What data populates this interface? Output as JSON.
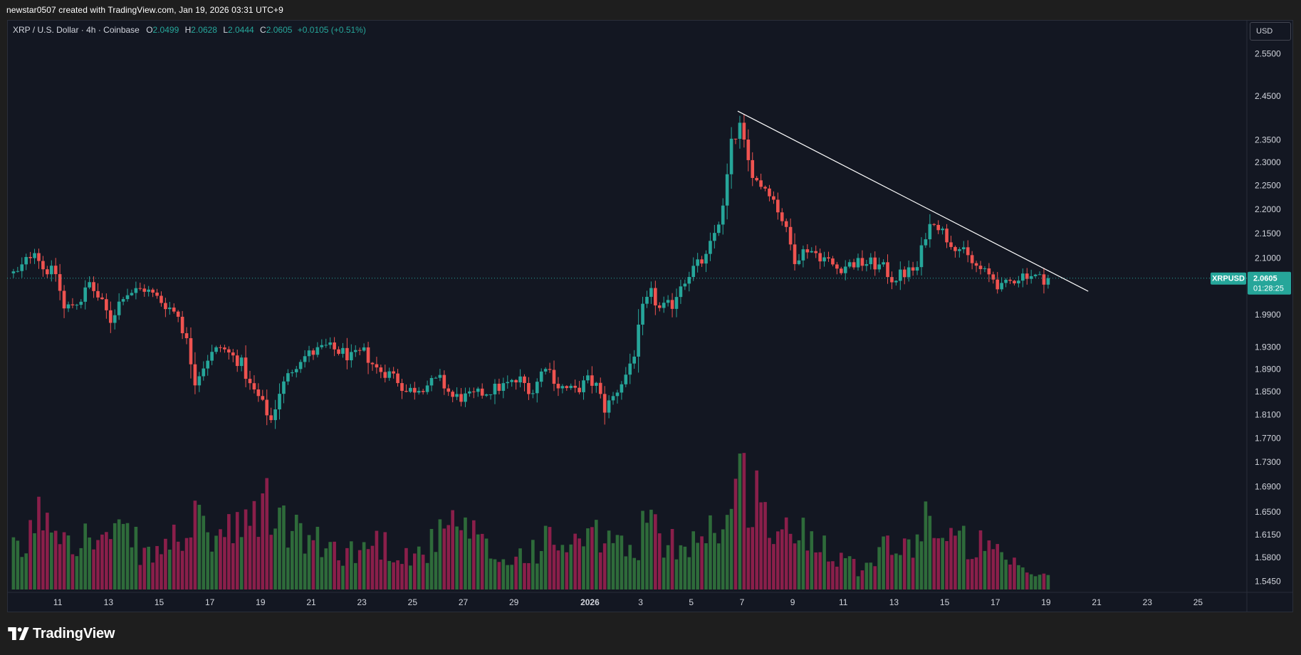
{
  "header": {
    "attribution": "newstar0507 created with TradingView.com, Jan 19, 2026 03:31 UTC+9"
  },
  "legend": {
    "symbol": "XRP / U.S. Dollar · 4h · Coinbase",
    "open_label": "O",
    "open": "2.0499",
    "high_label": "H",
    "high": "2.0628",
    "low_label": "L",
    "low": "2.0444",
    "close_label": "C",
    "close": "2.0605",
    "change": "+0.0105 (+0.51%)"
  },
  "currency_button": "USD",
  "price_tag": {
    "ticker": "XRPUSD",
    "price": "2.0605",
    "countdown": "01:28:25"
  },
  "footer": {
    "brand": "TradingView"
  },
  "colors": {
    "background": "#131722",
    "up": "#26a69a",
    "down": "#ef5350",
    "volume_up": "#2e6b3a",
    "volume_down": "#8a1f4a",
    "trendline": "#ffffff",
    "price_line": "#26a69a"
  },
  "chart_data": {
    "type": "candlestick",
    "symbol": "XRPUSD",
    "interval": "4h",
    "exchange": "Coinbase",
    "y_scale": "log",
    "y_range": [
      1.5,
      2.63
    ],
    "x_range_days": [
      "2025-12-09",
      "2026-01-26"
    ],
    "y_ticks": [
      "2.5500",
      "2.4500",
      "2.3500",
      "2.3000",
      "2.2500",
      "2.2000",
      "2.1500",
      "2.1000",
      "1.9900",
      "1.9300",
      "1.8900",
      "1.8500",
      "1.8100",
      "1.7700",
      "1.7300",
      "1.6900",
      "1.6500",
      "1.6150",
      "1.5800",
      "1.5450"
    ],
    "x_ticks": [
      {
        "label": "11",
        "date": "2025-12-11"
      },
      {
        "label": "13",
        "date": "2025-12-13"
      },
      {
        "label": "15",
        "date": "2025-12-15"
      },
      {
        "label": "17",
        "date": "2025-12-17"
      },
      {
        "label": "19",
        "date": "2025-12-19"
      },
      {
        "label": "21",
        "date": "2025-12-21"
      },
      {
        "label": "23",
        "date": "2025-12-23"
      },
      {
        "label": "25",
        "date": "2025-12-25"
      },
      {
        "label": "27",
        "date": "2025-12-27"
      },
      {
        "label": "29",
        "date": "2025-12-29"
      },
      {
        "label": "2026",
        "date": "2026-01-01"
      },
      {
        "label": "3",
        "date": "2026-01-03"
      },
      {
        "label": "5",
        "date": "2026-01-05"
      },
      {
        "label": "7",
        "date": "2026-01-07"
      },
      {
        "label": "9",
        "date": "2026-01-09"
      },
      {
        "label": "11",
        "date": "2026-01-11"
      },
      {
        "label": "13",
        "date": "2026-01-13"
      },
      {
        "label": "15",
        "date": "2026-01-15"
      },
      {
        "label": "17",
        "date": "2026-01-17"
      },
      {
        "label": "19",
        "date": "2026-01-19"
      },
      {
        "label": "21",
        "date": "2026-01-21"
      },
      {
        "label": "23",
        "date": "2026-01-23"
      },
      {
        "label": "25",
        "date": "2026-01-25"
      }
    ],
    "price_anchors": [
      [
        "2025-12-09 12:00",
        2.07
      ],
      [
        "2025-12-10 04:00",
        2.12
      ],
      [
        "2025-12-10 12:00",
        2.08
      ],
      [
        "2025-12-11 00:00",
        2.07
      ],
      [
        "2025-12-11 08:00",
        2.0
      ],
      [
        "2025-12-12 00:00",
        2.02
      ],
      [
        "2025-12-12 08:00",
        2.05
      ],
      [
        "2025-12-12 20:00",
        2.01
      ],
      [
        "2025-12-13 04:00",
        1.98
      ],
      [
        "2025-12-13 16:00",
        2.03
      ],
      [
        "2025-12-14 12:00",
        2.04
      ],
      [
        "2025-12-15 08:00",
        2.01
      ],
      [
        "2025-12-15 20:00",
        1.99
      ],
      [
        "2025-12-16 04:00",
        1.94
      ],
      [
        "2025-12-16 12:00",
        1.87
      ],
      [
        "2025-12-17 00:00",
        1.91
      ],
      [
        "2025-12-17 12:00",
        1.93
      ],
      [
        "2025-12-18 08:00",
        1.9
      ],
      [
        "2025-12-18 16:00",
        1.86
      ],
      [
        "2025-12-19 00:00",
        1.84
      ],
      [
        "2025-12-19 12:00",
        1.8
      ],
      [
        "2025-12-19 20:00",
        1.85
      ],
      [
        "2025-12-20 08:00",
        1.89
      ],
      [
        "2025-12-20 16:00",
        1.91
      ],
      [
        "2025-12-21 04:00",
        1.92
      ],
      [
        "2025-12-21 16:00",
        1.93
      ],
      [
        "2025-12-22 08:00",
        1.92
      ],
      [
        "2025-12-22 16:00",
        1.91
      ],
      [
        "2025-12-23 04:00",
        1.92
      ],
      [
        "2025-12-23 16:00",
        1.89
      ],
      [
        "2025-12-24 08:00",
        1.88
      ],
      [
        "2025-12-24 20:00",
        1.85
      ],
      [
        "2025-12-25 12:00",
        1.86
      ],
      [
        "2025-12-26 04:00",
        1.87
      ],
      [
        "2025-12-26 16:00",
        1.84
      ],
      [
        "2025-12-27 08:00",
        1.84
      ],
      [
        "2025-12-28 00:00",
        1.85
      ],
      [
        "2025-12-28 16:00",
        1.86
      ],
      [
        "2025-12-29 08:00",
        1.87
      ],
      [
        "2025-12-29 20:00",
        1.85
      ],
      [
        "2025-12-30 08:00",
        1.9
      ],
      [
        "2025-12-30 20:00",
        1.86
      ],
      [
        "2025-12-31 12:00",
        1.85
      ],
      [
        "2026-01-01 00:00",
        1.87
      ],
      [
        "2026-01-01 08:00",
        1.86
      ],
      [
        "2026-01-01 16:00",
        1.82
      ],
      [
        "2026-01-02 00:00",
        1.84
      ],
      [
        "2026-01-02 12:00",
        1.88
      ],
      [
        "2026-01-02 20:00",
        1.92
      ],
      [
        "2026-01-03 04:00",
        2.0
      ],
      [
        "2026-01-03 12:00",
        2.03
      ],
      [
        "2026-01-03 20:00",
        2.0
      ],
      [
        "2026-01-04 08:00",
        2.01
      ],
      [
        "2026-01-04 16:00",
        2.05
      ],
      [
        "2026-01-05 04:00",
        2.08
      ],
      [
        "2026-01-05 16:00",
        2.1
      ],
      [
        "2026-01-06 00:00",
        2.15
      ],
      [
        "2026-01-06 08:00",
        2.2
      ],
      [
        "2026-01-06 16:00",
        2.34
      ],
      [
        "2026-01-07 00:00",
        2.38
      ],
      [
        "2026-01-07 08:00",
        2.3
      ],
      [
        "2026-01-07 16:00",
        2.26
      ],
      [
        "2026-01-08 04:00",
        2.24
      ],
      [
        "2026-01-08 16:00",
        2.18
      ],
      [
        "2026-01-09 04:00",
        2.1
      ],
      [
        "2026-01-09 16:00",
        2.12
      ],
      [
        "2026-01-10 08:00",
        2.1
      ],
      [
        "2026-01-10 20:00",
        2.08
      ],
      [
        "2026-01-11 12:00",
        2.09
      ],
      [
        "2026-01-12 04:00",
        2.09
      ],
      [
        "2026-01-12 16:00",
        2.08
      ],
      [
        "2026-01-13 00:00",
        2.06
      ],
      [
        "2026-01-13 12:00",
        2.07
      ],
      [
        "2026-01-14 00:00",
        2.08
      ],
      [
        "2026-01-14 08:00",
        2.15
      ],
      [
        "2026-01-14 16:00",
        2.18
      ],
      [
        "2026-01-15 04:00",
        2.14
      ],
      [
        "2026-01-15 16:00",
        2.12
      ],
      [
        "2026-01-16 04:00",
        2.09
      ],
      [
        "2026-01-16 16:00",
        2.07
      ],
      [
        "2026-01-17 00:00",
        2.06
      ],
      [
        "2026-01-17 08:00",
        2.04
      ],
      [
        "2026-01-17 20:00",
        2.06
      ],
      [
        "2026-01-18 08:00",
        2.07
      ],
      [
        "2026-01-18 20:00",
        2.06
      ],
      [
        "2026-01-19 02:00",
        2.06
      ]
    ],
    "last_close": 2.0605,
    "volume_peaks": [
      [
        "2025-12-09 12:00",
        0.35
      ],
      [
        "2025-12-10 08:00",
        0.75
      ],
      [
        "2025-12-11 08:00",
        0.55
      ],
      [
        "2025-12-12 08:00",
        0.45
      ],
      [
        "2025-12-13 16:00",
        0.5
      ],
      [
        "2025-12-14 12:00",
        0.3
      ],
      [
        "2025-12-16 08:00",
        0.6
      ],
      [
        "2025-12-17 00:00",
        0.5
      ],
      [
        "2025-12-18 08:00",
        0.55
      ],
      [
        "2025-12-19 00:00",
        0.8
      ],
      [
        "2025-12-19 12:00",
        0.7
      ],
      [
        "2025-12-20 04:00",
        0.55
      ],
      [
        "2025-12-21 08:00",
        0.4
      ],
      [
        "2025-12-22 16:00",
        0.35
      ],
      [
        "2025-12-23 12:00",
        0.45
      ],
      [
        "2025-12-25 00:00",
        0.3
      ],
      [
        "2025-12-26 16:00",
        0.6
      ],
      [
        "2025-12-28 12:00",
        0.25
      ],
      [
        "2025-12-30 08:00",
        0.45
      ],
      [
        "2025-12-31 04:00",
        0.4
      ],
      [
        "2026-01-01 16:00",
        0.5
      ],
      [
        "2026-01-02 16:00",
        0.3
      ],
      [
        "2026-01-03 04:00",
        0.75
      ],
      [
        "2026-01-03 16:00",
        0.4
      ],
      [
        "2026-01-04 16:00",
        0.45
      ],
      [
        "2026-01-05 12:00",
        0.55
      ],
      [
        "2026-01-06 08:00",
        0.65
      ],
      [
        "2026-01-06 20:00",
        1.0
      ],
      [
        "2026-01-07 12:00",
        0.9
      ],
      [
        "2026-01-08 00:00",
        0.6
      ],
      [
        "2026-01-08 16:00",
        0.5
      ],
      [
        "2026-01-09 08:00",
        0.55
      ],
      [
        "2026-01-10 04:00",
        0.45
      ],
      [
        "2026-01-11 12:00",
        0.2
      ],
      [
        "2026-01-12 16:00",
        0.45
      ],
      [
        "2026-01-13 08:00",
        0.35
      ],
      [
        "2026-01-14 08:00",
        0.75
      ],
      [
        "2026-01-14 20:00",
        0.45
      ],
      [
        "2026-01-15 16:00",
        0.45
      ],
      [
        "2026-01-16 12:00",
        0.4
      ],
      [
        "2026-01-17 08:00",
        0.25
      ],
      [
        "2026-01-18 08:00",
        0.15
      ],
      [
        "2026-01-19 02:00",
        0.1
      ]
    ],
    "trendline": {
      "start": [
        "2026-01-06 20:00",
        2.415
      ],
      "end": [
        "2026-01-20 16:00",
        2.035
      ]
    }
  }
}
